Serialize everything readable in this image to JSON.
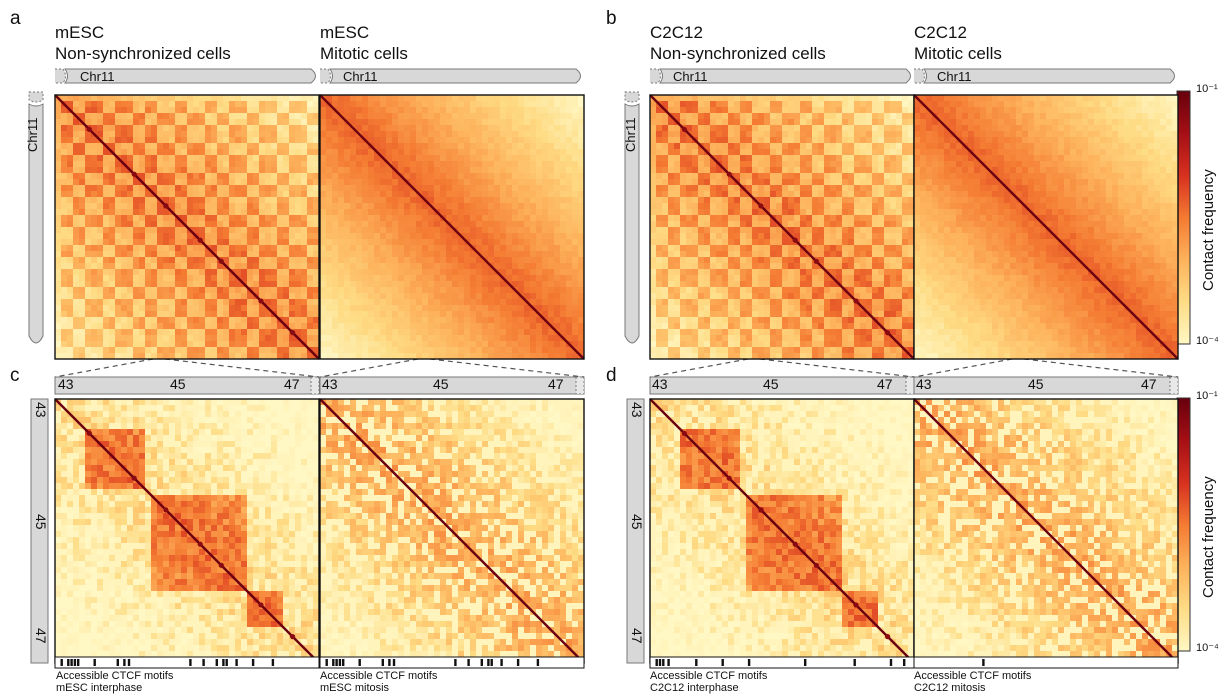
{
  "panel_labels": {
    "a": "a",
    "b": "b",
    "c": "c",
    "d": "d"
  },
  "columns": [
    {
      "line1": "mESC",
      "line2": "Non-synchronized cells",
      "zoom_caption_1": "Accessible CTCF motifs",
      "zoom_caption_2": "mESC interphase"
    },
    {
      "line1": "mESC",
      "line2": "Mitotic cells",
      "zoom_caption_1": "Accessible CTCF motifs",
      "zoom_caption_2": "mESC mitosis"
    },
    {
      "line1": "C2C12",
      "line2": "Non-synchronized cells",
      "zoom_caption_1": "Accessible CTCF motifs",
      "zoom_caption_2": "C2C12 interphase"
    },
    {
      "line1": "C2C12",
      "line2": "Mitotic cells",
      "zoom_caption_1": "Accessible CTCF motifs",
      "zoom_caption_2": "C2C12 mitosis"
    }
  ],
  "chromosome_label": "Chr11",
  "zoom_ticks": [
    "43",
    "45",
    "47"
  ],
  "colorbar": {
    "title": "Contact frequency",
    "max_label": "10⁻¹",
    "min_label": "10⁻⁴",
    "colors": [
      "#fff7c4",
      "#fedc85",
      "#fdb25b",
      "#f47a32",
      "#d7301f",
      "#a50f15",
      "#67000d"
    ]
  },
  "chart_data": [
    {
      "type": "heatmap",
      "panel": "a",
      "title": "mESC Non-synchronized cells",
      "region": "Chr11",
      "pattern": "compartments"
    },
    {
      "type": "heatmap",
      "panel": "a",
      "title": "mESC Mitotic cells",
      "region": "Chr11",
      "pattern": "diagonal"
    },
    {
      "type": "heatmap",
      "panel": "b",
      "title": "C2C12 Non-synchronized cells",
      "region": "Chr11",
      "pattern": "compartments"
    },
    {
      "type": "heatmap",
      "panel": "b",
      "title": "C2C12 Mitotic cells",
      "region": "Chr11",
      "pattern": "diagonal"
    },
    {
      "type": "heatmap",
      "panel": "c",
      "title": "mESC interphase zoom",
      "region_mb": [
        43,
        47
      ],
      "pattern": "TADs",
      "ctcf_motifs_mb": [
        43.1,
        43.2,
        43.25,
        43.3,
        43.35,
        43.6,
        43.95,
        44.05,
        44.12,
        45.05,
        45.25,
        45.45,
        45.55,
        45.6,
        45.75,
        46.0,
        46.3
      ]
    },
    {
      "type": "heatmap",
      "panel": "c",
      "title": "mESC mitosis zoom",
      "region_mb": [
        43,
        47
      ],
      "pattern": "diagonal",
      "ctcf_motifs_mb": [
        43.1,
        43.2,
        43.25,
        43.3,
        43.35,
        43.6,
        43.95,
        44.05,
        44.12,
        45.05,
        45.25,
        45.45,
        45.55,
        45.6,
        45.75,
        46.0,
        46.3
      ]
    },
    {
      "type": "heatmap",
      "panel": "d",
      "title": "C2C12 interphase zoom",
      "region_mb": [
        43,
        47
      ],
      "pattern": "TADs",
      "ctcf_motifs_mb": [
        43.1,
        43.15,
        43.2,
        43.28,
        43.7,
        44.1,
        44.5,
        45.35,
        46.1,
        46.65,
        46.85
      ]
    },
    {
      "type": "heatmap",
      "panel": "d",
      "title": "C2C12 mitosis zoom",
      "region_mb": [
        43,
        47
      ],
      "pattern": "diagonal",
      "ctcf_motifs_mb": [
        44.05
      ]
    }
  ]
}
